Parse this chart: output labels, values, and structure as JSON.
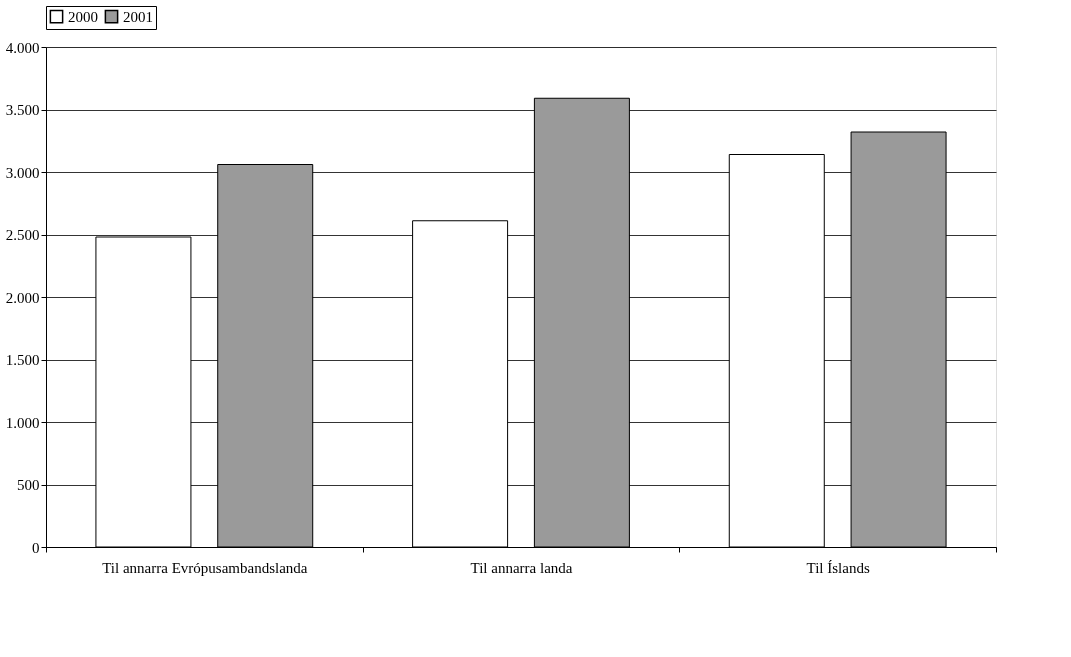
{
  "chart_data": {
    "type": "bar",
    "categories": [
      "Til annarra Evrópusambandslanda",
      "Til annarra landa",
      "Til Íslands"
    ],
    "series": [
      {
        "name": "2000",
        "color": "#ffffff",
        "values": [
          2480,
          2610,
          3140
        ]
      },
      {
        "name": "2001",
        "color": "#9a9a9a",
        "values": [
          3060,
          3590,
          3320
        ]
      }
    ],
    "ylim": [
      0,
      4000
    ],
    "yticks": [
      0,
      {
        "value": 500,
        "label": "500"
      },
      {
        "value": 1000,
        "label": "1.000"
      },
      {
        "value": 1500,
        "label": "1.500"
      },
      {
        "value": 2000,
        "label": "2.000"
      },
      {
        "value": 2500,
        "label": "2.500"
      },
      {
        "value": 3000,
        "label": "3.000"
      },
      {
        "value": 3500,
        "label": "3.500"
      },
      {
        "value": 4000,
        "label": "4.000"
      }
    ],
    "grid": "y",
    "legend": "top"
  }
}
